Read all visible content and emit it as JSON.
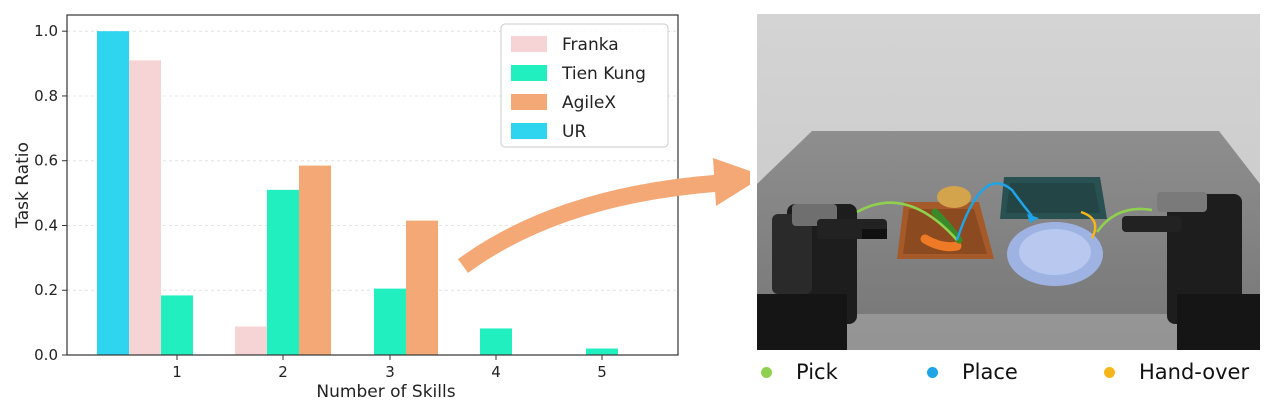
{
  "chart_data": {
    "type": "bar",
    "xlabel": "Number of Skills",
    "ylabel": "Task Ratio",
    "ylim": [
      0,
      1.05
    ],
    "categories": [
      "1",
      "2",
      "3",
      "4",
      "5"
    ],
    "yticks": [
      "0.0",
      "0.2",
      "0.4",
      "0.6",
      "0.8",
      "1.0"
    ],
    "grid": true,
    "legend_position": "top-right",
    "series": [
      {
        "name": "UR",
        "color": "#2fd4ee",
        "values": [
          1.0,
          null,
          null,
          null,
          null
        ]
      },
      {
        "name": "Franka",
        "color": "#f6d4d6",
        "values": [
          0.91,
          0.088,
          null,
          null,
          null
        ]
      },
      {
        "name": "Tien Kung",
        "color": "#22efc0",
        "values": [
          0.184,
          0.51,
          0.205,
          0.082,
          0.02
        ]
      },
      {
        "name": "AgileX",
        "color": "#f4a876",
        "values": [
          null,
          0.585,
          0.415,
          null,
          null
        ]
      }
    ],
    "legend_order": [
      "Franka",
      "Tien Kung",
      "AgileX",
      "UR"
    ]
  },
  "skills_legend": [
    {
      "label": "Pick",
      "color": "#8fd14f"
    },
    {
      "label": "Place",
      "color": "#1fa4e8"
    },
    {
      "label": "Hand-over",
      "color": "#f5b61b"
    }
  ]
}
